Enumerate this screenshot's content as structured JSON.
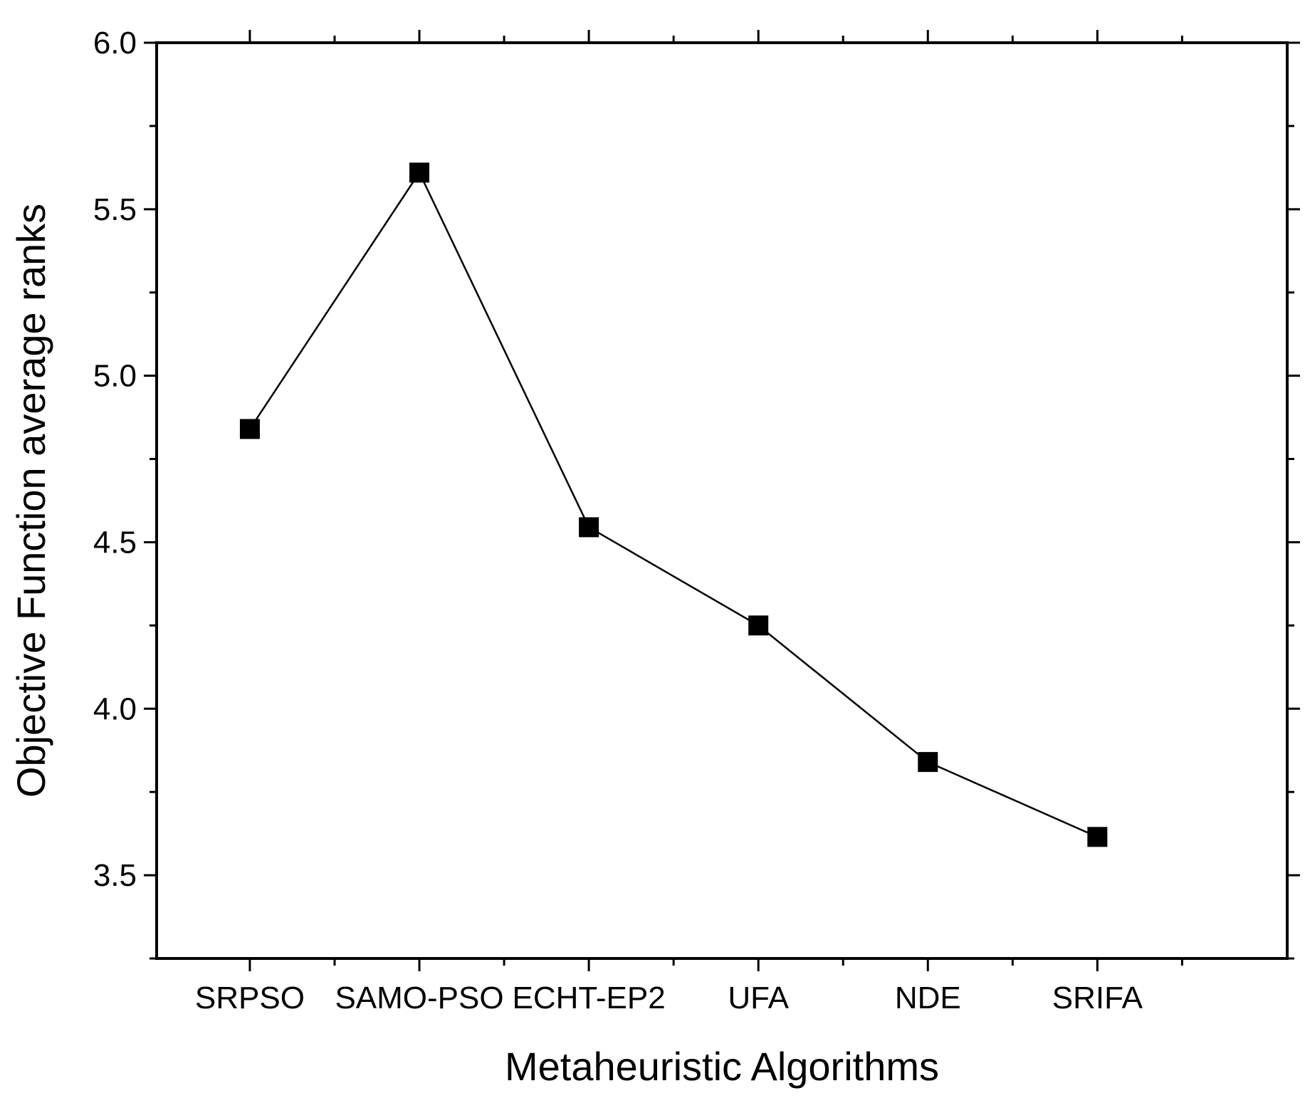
{
  "chart_data": {
    "type": "line",
    "title": "",
    "xlabel": "Metaheuristic Algorithms",
    "ylabel": "Objective Function average ranks",
    "categories": [
      "SRPSO",
      "SAMO-PSO",
      "ECHT-EP2",
      "UFA",
      "NDE",
      "SRIFA"
    ],
    "series": [
      {
        "name": "Objective Function average ranks",
        "values": [
          4.84,
          5.61,
          4.545,
          4.25,
          3.84,
          3.615
        ]
      }
    ],
    "ylim": [
      3.25,
      6.0
    ],
    "yticks": [
      "3.5",
      "4.0",
      "4.5",
      "5.0",
      "5.5",
      "6.0"
    ],
    "ytick_values": [
      3.5,
      4.0,
      4.5,
      5.0,
      5.5,
      6.0
    ],
    "y_minor_step": 0.25,
    "grid": false,
    "marker": "square",
    "color": "#000000"
  }
}
